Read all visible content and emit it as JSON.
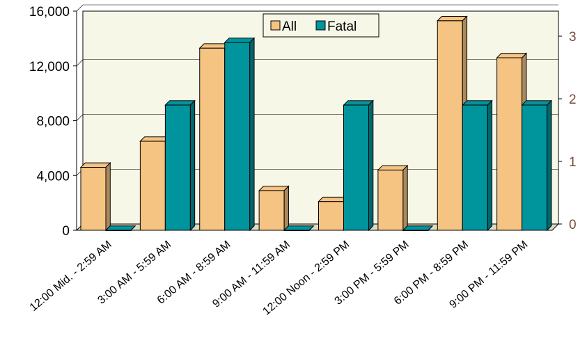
{
  "chart_data": {
    "type": "bar",
    "title": "",
    "xlabel": "",
    "ylabel": "",
    "categories": [
      "12:00 Mid. - 2:59 AM",
      "3:00 AM - 5:59 AM",
      "6:00 AM - 8:59 AM",
      "9:00 AM - 11:59 AM",
      "12:00 Noon - 2:59 PM",
      "3:00 PM - 5:59 PM",
      "6:00 PM - 8:59 PM",
      "9:00 PM - 11:59 PM"
    ],
    "series": [
      {
        "name": "All",
        "axis": "left",
        "color": "#f5c382",
        "values": [
          4600,
          6500,
          13300,
          2900,
          2100,
          4400,
          15300,
          12600
        ]
      },
      {
        "name": "Fatal",
        "axis": "right",
        "color": "#00959c",
        "values": [
          0,
          2,
          3,
          0,
          2,
          0,
          2,
          2
        ]
      }
    ],
    "y_left": {
      "range": [
        0,
        16000
      ],
      "ticks": [
        0,
        4000,
        8000,
        12000,
        16000
      ],
      "tick_labels": [
        "0",
        "4,000",
        "8,000",
        "12,000",
        "16,000"
      ]
    },
    "y_right": {
      "range": [
        0,
        3.5
      ],
      "ticks": [
        0,
        1,
        2,
        3
      ],
      "tick_labels": [
        "0",
        "1",
        "2",
        "3"
      ]
    },
    "legend": {
      "position": "top-center",
      "entries": [
        "All",
        "Fatal"
      ]
    },
    "grid": true,
    "plot_background": "#f7f7e8"
  }
}
